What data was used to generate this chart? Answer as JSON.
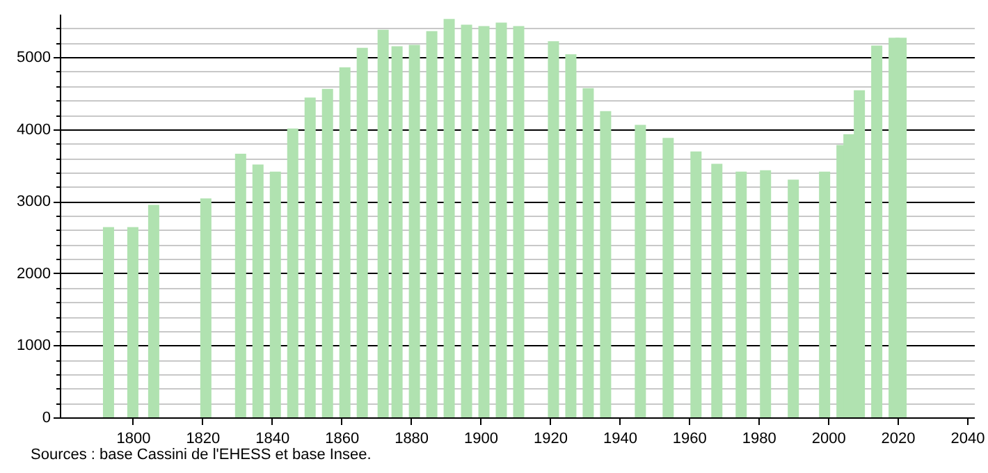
{
  "chart_data": {
    "type": "bar",
    "x": [
      1793,
      1800,
      1806,
      1821,
      1831,
      1836,
      1841,
      1846,
      1851,
      1856,
      1861,
      1866,
      1872,
      1876,
      1881,
      1886,
      1891,
      1896,
      1901,
      1906,
      1911,
      1921,
      1926,
      1931,
      1936,
      1946,
      1954,
      1962,
      1968,
      1975,
      1982,
      1990,
      1999,
      2004,
      2006,
      2009,
      2014,
      2019,
      2021
    ],
    "values": [
      2640,
      2640,
      2950,
      3040,
      3660,
      3510,
      3410,
      4010,
      4440,
      4560,
      4860,
      5130,
      5380,
      5150,
      5170,
      5360,
      5530,
      5450,
      5430,
      5480,
      5430,
      5220,
      5040,
      4570,
      4250,
      4060,
      3880,
      3690,
      3520,
      3410,
      3430,
      3300,
      3410,
      3780,
      3930,
      4540,
      5160,
      5270,
      5270
    ],
    "color": "#b0e2b0",
    "xlim": [
      1779,
      2042
    ],
    "xticks": [
      1800,
      1820,
      1840,
      1860,
      1880,
      1900,
      1920,
      1940,
      1960,
      1980,
      2000,
      2020,
      2040
    ],
    "ylim": [
      0,
      5600
    ],
    "yticks": [
      0,
      {
        "value": 200,
        "label": null
      },
      {
        "value": 400,
        "label": null
      },
      {
        "value": 600,
        "label": null
      },
      {
        "value": 800,
        "label": null
      },
      1000,
      {
        "value": 1200,
        "label": null
      },
      {
        "value": 1400,
        "label": null
      },
      {
        "value": 1600,
        "label": null
      },
      {
        "value": 1800,
        "label": null
      },
      2000,
      {
        "value": 2200,
        "label": null
      },
      {
        "value": 2400,
        "label": null
      },
      {
        "value": 2600,
        "label": null
      },
      {
        "value": 2800,
        "label": null
      },
      3000,
      {
        "value": 3200,
        "label": null
      },
      {
        "value": 3400,
        "label": null
      },
      {
        "value": 3600,
        "label": null
      },
      {
        "value": 3800,
        "label": null
      },
      4000,
      {
        "value": 4200,
        "label": null
      },
      {
        "value": 4400,
        "label": null
      },
      {
        "value": 4600,
        "label": null
      },
      {
        "value": 4800,
        "label": null
      },
      5000,
      {
        "value": 5200,
        "label": null
      },
      {
        "value": 5400,
        "label": null
      }
    ],
    "grid": "y",
    "annotations": [
      "Sources : base Cassini de l'EHESS et base Insee."
    ]
  }
}
